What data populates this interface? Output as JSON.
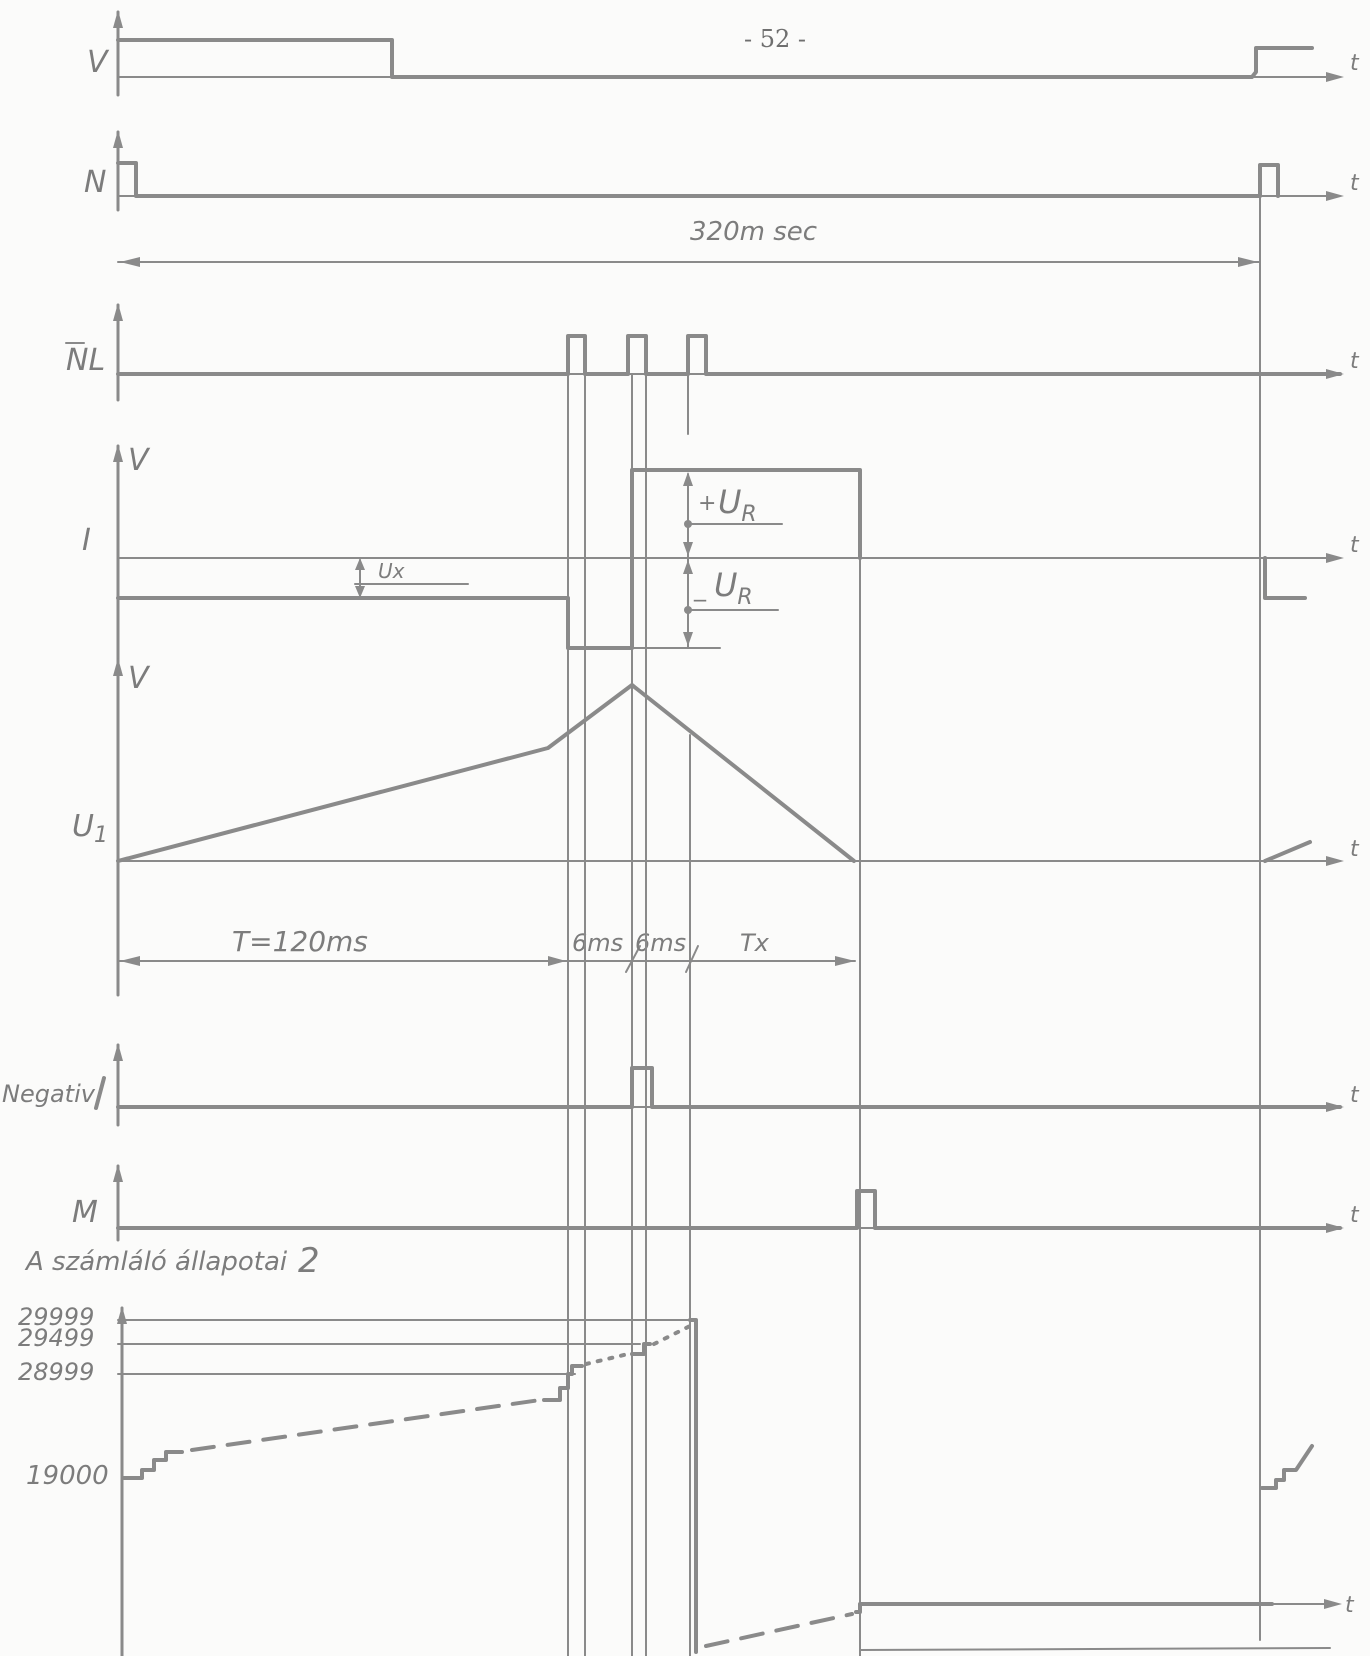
{
  "page_number": "- 52 -",
  "signals": {
    "v": "V",
    "n": "N",
    "nl": "NL",
    "i": "I",
    "u1": "U",
    "u1_sub": "1",
    "negativ": "Negativ",
    "m": "M"
  },
  "units": {
    "volt_i": "V",
    "volt_u1": "V"
  },
  "time_symbol": "t",
  "period_label": "320m sec",
  "ux_label": "Ux",
  "ur_plus_sign": "+",
  "ur_minus_sign": "_",
  "ur_symbol": "U",
  "ur_sub": "R",
  "timing": {
    "t_label": "T=120ms",
    "six_ms_1": "6ms",
    "six_ms_2": "6ms",
    "tx_label": "Tx"
  },
  "counter": {
    "title": "A számláló állapotai",
    "title_note": "2",
    "levels": [
      "29999",
      "29499",
      "28999",
      "19000"
    ]
  }
}
